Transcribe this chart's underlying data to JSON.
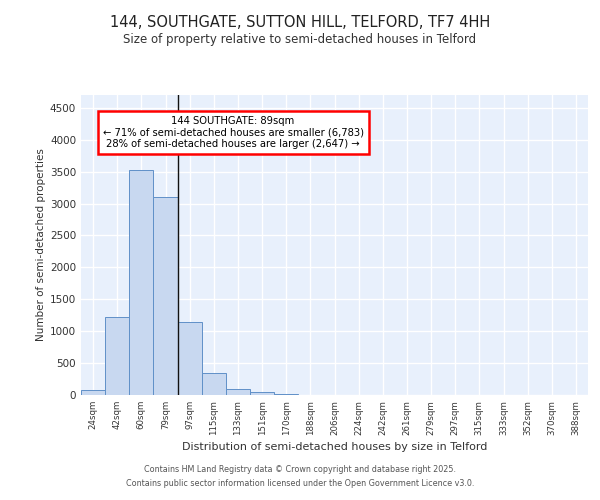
{
  "title_line1": "144, SOUTHGATE, SUTTON HILL, TELFORD, TF7 4HH",
  "title_line2": "Size of property relative to semi-detached houses in Telford",
  "xlabel": "Distribution of semi-detached houses by size in Telford",
  "ylabel": "Number of semi-detached properties",
  "categories": [
    "24sqm",
    "42sqm",
    "60sqm",
    "79sqm",
    "97sqm",
    "115sqm",
    "133sqm",
    "151sqm",
    "170sqm",
    "188sqm",
    "206sqm",
    "224sqm",
    "242sqm",
    "261sqm",
    "279sqm",
    "297sqm",
    "315sqm",
    "333sqm",
    "352sqm",
    "370sqm",
    "388sqm"
  ],
  "bar_values": [
    75,
    1220,
    3520,
    3100,
    1150,
    340,
    100,
    50,
    15,
    5,
    2,
    0,
    0,
    0,
    0,
    0,
    0,
    0,
    0,
    0,
    0
  ],
  "bar_color": "#c8d8f0",
  "bar_edge_color": "#6090c8",
  "annotation_title": "144 SOUTHGATE: 89sqm",
  "annotation_line1": "← 71% of semi-detached houses are smaller (6,783)",
  "annotation_line2": "28% of semi-detached houses are larger (2,647) →",
  "ylim": [
    0,
    4700
  ],
  "yticks": [
    0,
    500,
    1000,
    1500,
    2000,
    2500,
    3000,
    3500,
    4000,
    4500
  ],
  "background_color": "#e8f0fc",
  "grid_color": "#ffffff",
  "footer_line1": "Contains HM Land Registry data © Crown copyright and database right 2025.",
  "footer_line2": "Contains public sector information licensed under the Open Government Licence v3.0."
}
